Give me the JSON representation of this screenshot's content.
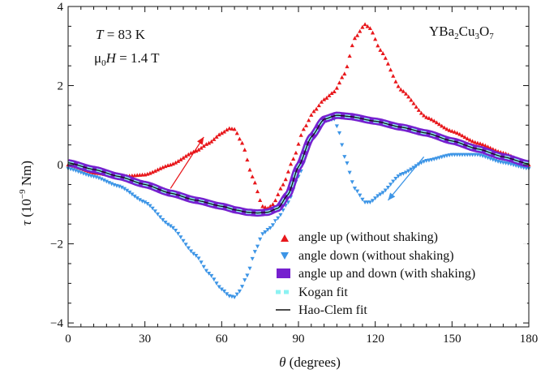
{
  "chart_data": {
    "type": "scatter",
    "xlabel": "θ (degrees)",
    "ylabel": "τ (10⁻⁹ Nm)",
    "xlim": [
      0,
      180
    ],
    "ylim": [
      -4.1,
      4.0
    ],
    "xticks": [
      0,
      30,
      60,
      90,
      120,
      150,
      180
    ],
    "yticks": [
      -4,
      -2,
      0,
      2,
      4
    ],
    "xtick_labels": [
      "0",
      "30",
      "60",
      "90",
      "120",
      "150",
      "180"
    ],
    "ytick_labels": [
      "−4",
      "−2",
      "0",
      "2",
      "4"
    ],
    "grid": false,
    "legend_position": "bottom-right",
    "annotations": {
      "temp_var": "T",
      "temp_value": " = 83 K",
      "field_var": "μ",
      "field_sub": "0",
      "field_H": "H",
      "field_value": " = 1.4 T",
      "material": [
        "YBa",
        "2",
        "Cu",
        "3",
        "O",
        "7"
      ]
    },
    "series": [
      {
        "name": "angle up (without shaking)",
        "marker": "triangle-up",
        "color": "#e8171b",
        "x": [
          0,
          10,
          20,
          30,
          40,
          50,
          55,
          60,
          63,
          65,
          68,
          72,
          76,
          78,
          80,
          84,
          88,
          92,
          96,
          100,
          104,
          108,
          112,
          116,
          118,
          122,
          130,
          140,
          150,
          160,
          170,
          180
        ],
        "y": [
          0.0,
          -0.2,
          -0.3,
          -0.25,
          0.0,
          0.35,
          0.55,
          0.8,
          0.92,
          0.9,
          0.55,
          -0.3,
          -1.05,
          -1.1,
          -1.0,
          -0.5,
          0.15,
          0.9,
          1.35,
          1.65,
          1.85,
          2.3,
          3.2,
          3.55,
          3.45,
          2.9,
          1.9,
          1.2,
          0.85,
          0.55,
          0.3,
          0.0
        ]
      },
      {
        "name": "angle down (without shaking)",
        "marker": "triangle-down",
        "color": "#3d95e6",
        "x": [
          0,
          10,
          20,
          30,
          40,
          50,
          55,
          60,
          63,
          65,
          67,
          70,
          73,
          76,
          79,
          82,
          86,
          90,
          95,
          100,
          104,
          106,
          108,
          112,
          116,
          118,
          122,
          130,
          140,
          150,
          160,
          170,
          180
        ],
        "y": [
          -0.1,
          -0.3,
          -0.55,
          -0.95,
          -1.55,
          -2.3,
          -2.75,
          -3.15,
          -3.32,
          -3.35,
          -3.2,
          -2.8,
          -2.2,
          -1.75,
          -1.6,
          -1.35,
          -0.95,
          -0.3,
          0.6,
          1.1,
          1.15,
          0.8,
          0.2,
          -0.6,
          -0.95,
          -0.95,
          -0.75,
          -0.25,
          0.1,
          0.25,
          0.25,
          0.05,
          -0.1
        ]
      },
      {
        "name": "angle up and down (with shaking)",
        "marker": "square",
        "color": "#7620cf",
        "x": [
          0,
          10,
          20,
          30,
          40,
          50,
          60,
          66,
          70,
          74,
          78,
          82,
          86,
          90,
          95,
          100,
          105,
          110,
          120,
          130,
          140,
          150,
          160,
          170,
          180
        ],
        "y": [
          0.05,
          -0.12,
          -0.3,
          -0.5,
          -0.72,
          -0.9,
          -1.05,
          -1.15,
          -1.2,
          -1.22,
          -1.2,
          -1.1,
          -0.75,
          -0.05,
          0.7,
          1.15,
          1.25,
          1.22,
          1.1,
          0.95,
          0.8,
          0.6,
          0.4,
          0.2,
          0.02
        ]
      },
      {
        "name": "Kogan fit",
        "style": "dashed",
        "color": "#8cf2f2",
        "x": [
          0,
          10,
          20,
          30,
          40,
          50,
          60,
          66,
          70,
          74,
          78,
          82,
          86,
          90,
          95,
          100,
          105,
          110,
          120,
          130,
          140,
          150,
          160,
          170,
          180
        ],
        "y": [
          0.05,
          -0.12,
          -0.3,
          -0.5,
          -0.72,
          -0.9,
          -1.05,
          -1.15,
          -1.2,
          -1.22,
          -1.2,
          -1.1,
          -0.75,
          -0.05,
          0.7,
          1.15,
          1.25,
          1.22,
          1.1,
          0.95,
          0.8,
          0.6,
          0.4,
          0.2,
          0.02
        ]
      },
      {
        "name": "Hao-Clem fit",
        "style": "solid",
        "color": "#111111",
        "x": [
          0,
          10,
          20,
          30,
          40,
          50,
          60,
          66,
          70,
          74,
          78,
          82,
          86,
          90,
          95,
          100,
          105,
          110,
          120,
          130,
          140,
          150,
          160,
          170,
          180
        ],
        "y": [
          0.05,
          -0.12,
          -0.3,
          -0.5,
          -0.72,
          -0.9,
          -1.05,
          -1.15,
          -1.2,
          -1.22,
          -1.2,
          -1.1,
          -0.75,
          -0.05,
          0.7,
          1.15,
          1.25,
          1.22,
          1.1,
          0.95,
          0.8,
          0.6,
          0.4,
          0.2,
          0.02
        ]
      }
    ],
    "arrows": [
      {
        "name": "up-arrow",
        "color": "#e8171b",
        "from": [
          40,
          -0.6
        ],
        "to": [
          53,
          0.7
        ]
      },
      {
        "name": "down-arrow",
        "color": "#3d95e6",
        "from": [
          139,
          0.2
        ],
        "to": [
          125,
          -0.9
        ]
      }
    ]
  }
}
